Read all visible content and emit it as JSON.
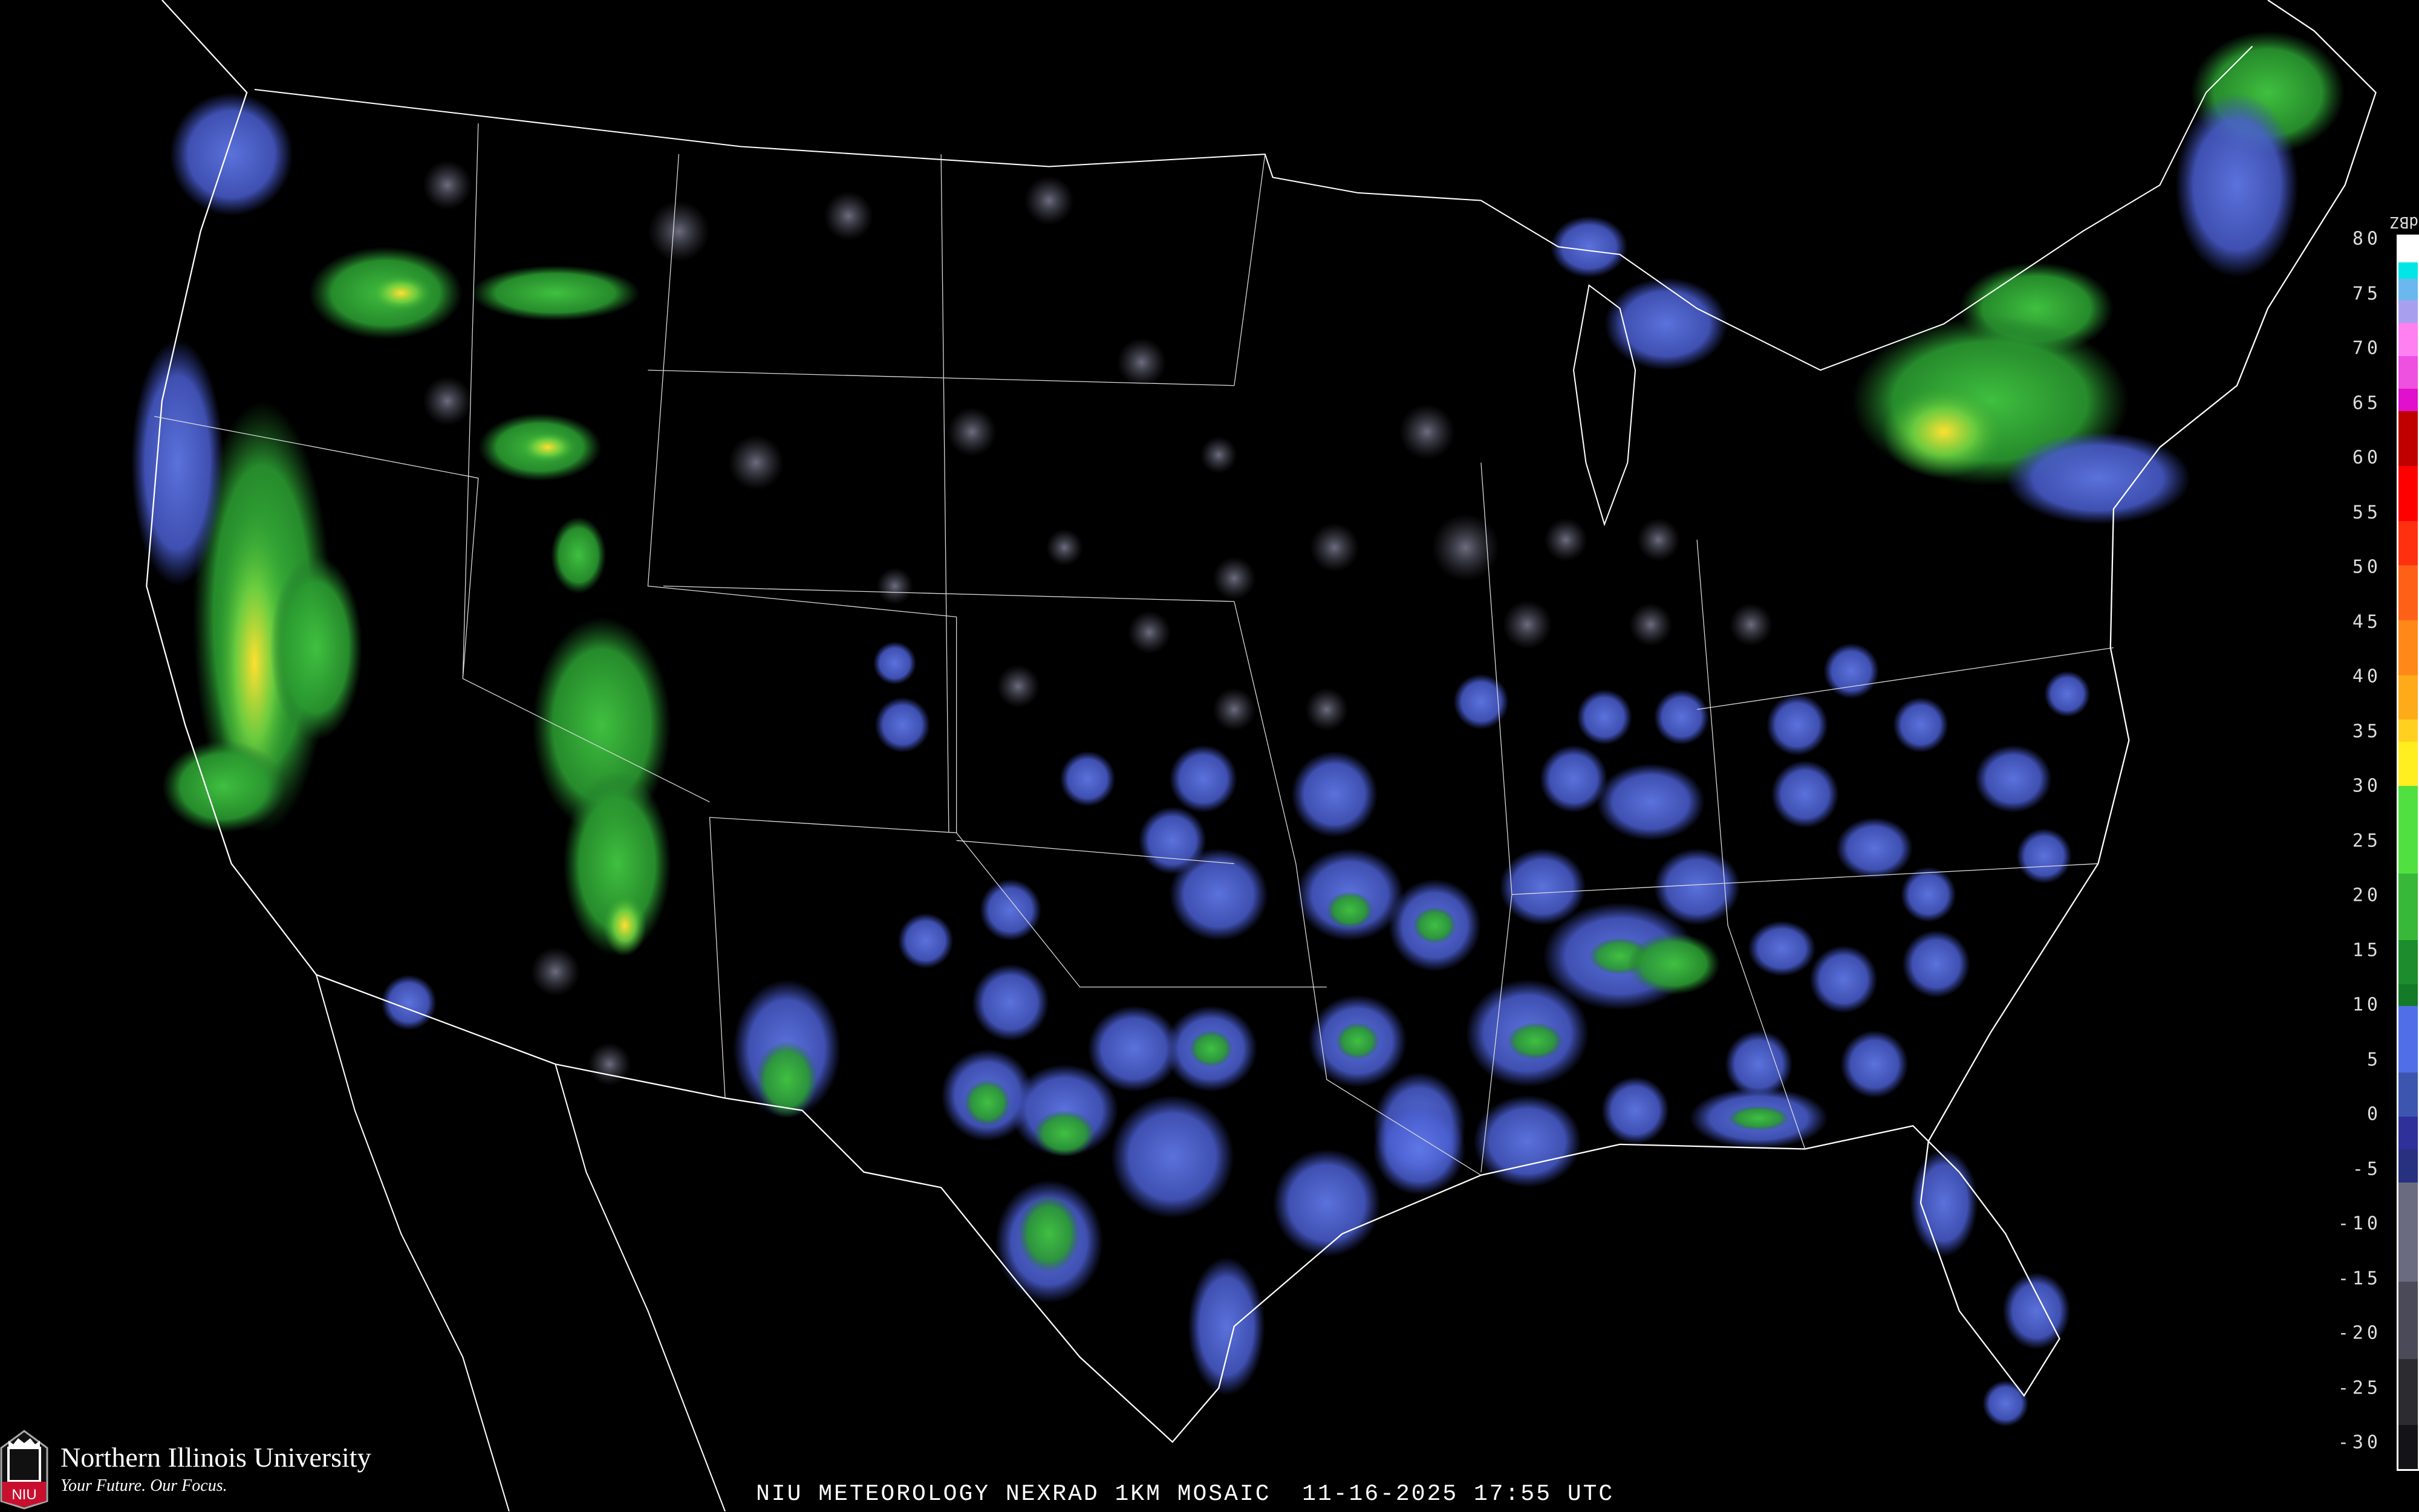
{
  "caption": {
    "title": "NIU METEOROLOGY NEXRAD 1KM MOSAIC",
    "date": "11-16-2025",
    "time": "17:55 UTC"
  },
  "branding": {
    "university": "Northern Illinois University",
    "tagline": "Your Future. Our Focus.",
    "logo_text": "NIU",
    "logo_color": "#c8102e"
  },
  "legend": {
    "unit": "dBZ",
    "ticks": [
      "80",
      "75",
      "70",
      "65",
      "60",
      "55",
      "50",
      "45",
      "40",
      "35",
      "30",
      "25",
      "20",
      "15",
      "10",
      "5",
      "0",
      "-5",
      "-10",
      "-15",
      "-20",
      "-25",
      "-30"
    ],
    "colors": [
      {
        "from": 80,
        "color": "#ffffff"
      },
      {
        "from": 77.5,
        "color": "#00e5e5"
      },
      {
        "from": 76,
        "color": "#6ab8ee"
      },
      {
        "from": 74,
        "color": "#a8a0ee"
      },
      {
        "from": 72,
        "color": "#ff80f0"
      },
      {
        "from": 69,
        "color": "#ee50e0"
      },
      {
        "from": 66,
        "color": "#e010cc"
      },
      {
        "from": 64,
        "color": "#c00000"
      },
      {
        "from": 59,
        "color": "#ff0000"
      },
      {
        "from": 54,
        "color": "#ff3010"
      },
      {
        "from": 50,
        "color": "#ff6018"
      },
      {
        "from": 45,
        "color": "#ff8818"
      },
      {
        "from": 40,
        "color": "#ffaa18"
      },
      {
        "from": 36,
        "color": "#ffd020"
      },
      {
        "from": 34,
        "color": "#ffee20"
      },
      {
        "from": 30,
        "color": "#50e040"
      },
      {
        "from": 22,
        "color": "#38b838"
      },
      {
        "from": 16,
        "color": "#1c8c2c"
      },
      {
        "from": 12,
        "color": "#147a28"
      },
      {
        "from": 10,
        "color": "#506ee8"
      },
      {
        "from": 4,
        "color": "#3c56b0"
      },
      {
        "from": 0,
        "color": "#30309a"
      },
      {
        "from": -3,
        "color": "#283080"
      },
      {
        "from": -6,
        "color": "#6a6a80"
      },
      {
        "from": -15,
        "color": "#4a4a58"
      },
      {
        "from": -22,
        "color": "#2c2c30"
      },
      {
        "from": -28,
        "color": "#141418"
      }
    ]
  },
  "map_colors": {
    "background": "#000000",
    "borders": "#ffffff",
    "counties": "#555555",
    "highways": "#8a4a20"
  }
}
